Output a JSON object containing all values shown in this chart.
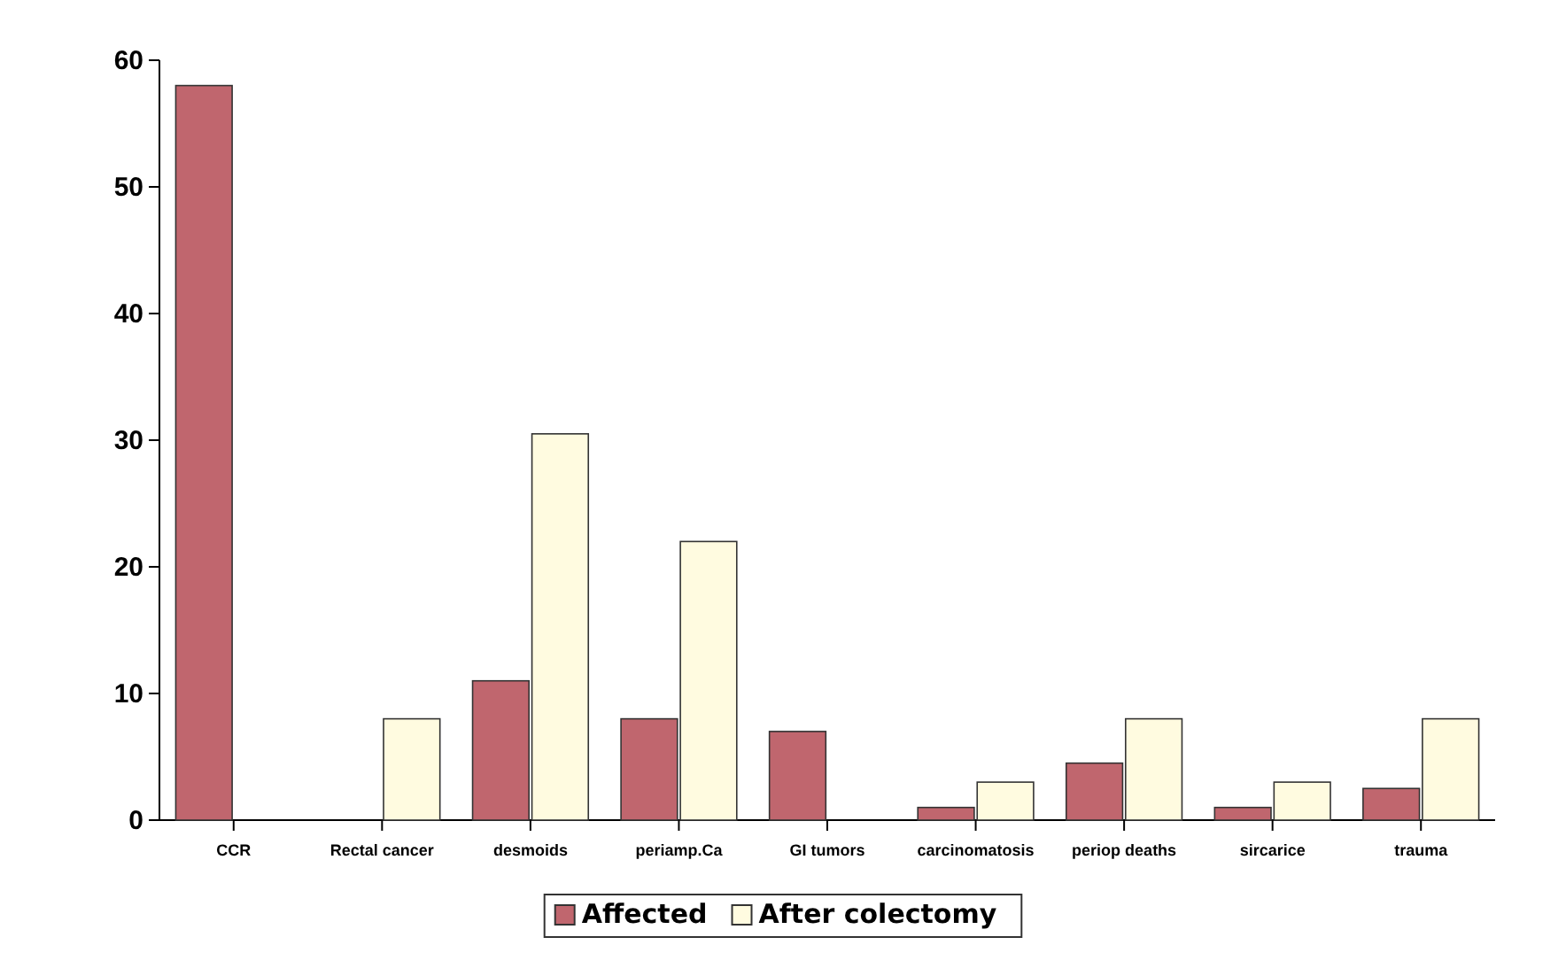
{
  "chart_data": {
    "type": "bar",
    "categories": [
      "CCR",
      "Rectal cancer",
      "desmoids",
      "periamp.Ca",
      "GI tumors",
      "carcinomatosis",
      "periop deaths",
      "sircarice",
      "trauma"
    ],
    "series": [
      {
        "name": "Affected",
        "color": "#c0666e",
        "values": [
          58,
          0,
          11,
          8,
          7,
          1,
          4.5,
          1,
          2.5
        ]
      },
      {
        "name": "After colectomy",
        "color": "#fffbe0",
        "values": [
          0,
          8,
          30.5,
          22,
          0,
          3,
          8,
          3,
          8
        ]
      }
    ],
    "ylim": [
      0,
      60
    ],
    "yticks": [
      0,
      10,
      20,
      30,
      40,
      50,
      60
    ],
    "grid": false,
    "legend": "bottom"
  }
}
